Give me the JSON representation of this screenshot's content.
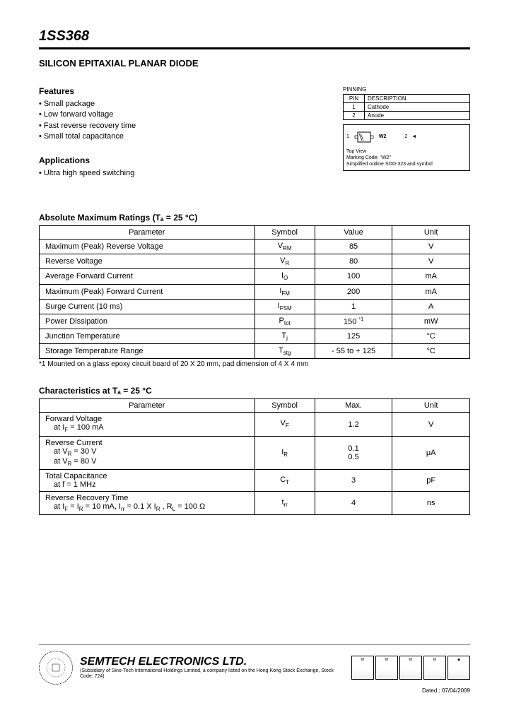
{
  "header": {
    "part_number": "1SS368",
    "subtitle": "SILICON EPITAXIAL PLANAR DIODE"
  },
  "features": {
    "heading": "Features",
    "items": [
      "Small package",
      "Low forward voltage",
      "Fast reverse recovery time",
      "Small total capacitance"
    ]
  },
  "applications": {
    "heading": "Applications",
    "items": [
      "Ultra high speed switching"
    ]
  },
  "pinning": {
    "title": "PINNING",
    "col1": "PIN",
    "col2": "DESCRIPTION",
    "rows": [
      {
        "pin": "1",
        "desc": "Cathode"
      },
      {
        "pin": "2",
        "desc": "Anode"
      }
    ],
    "package_label": "W2",
    "pin1": "1",
    "pin2": "2",
    "arrow": "◄",
    "top_view": "Top View",
    "marking": "Marking Code: \"W2\"",
    "outline": "Simplified outline SOD-323 and symbol"
  },
  "abs_max": {
    "title": "Absolute Maximum Ratings (Tₐ = 25 °C)",
    "headers": [
      "Parameter",
      "Symbol",
      "Value",
      "Unit"
    ],
    "rows": [
      {
        "param": "Maximum (Peak) Reverse Voltage",
        "sym": "V<sub>RM</sub>",
        "val": "85",
        "unit": "V"
      },
      {
        "param": "Reverse Voltage",
        "sym": "V<sub>R</sub>",
        "val": "80",
        "unit": "V"
      },
      {
        "param": "Average Forward Current",
        "sym": "I<sub>O</sub>",
        "val": "100",
        "unit": "mA"
      },
      {
        "param": "Maximum (Peak) Forward Current",
        "sym": "I<sub>FM</sub>",
        "val": "200",
        "unit": "mA"
      },
      {
        "param": "Surge Current (10 ms)",
        "sym": "I<sub>FSM</sub>",
        "val": "1",
        "unit": "A"
      },
      {
        "param": "Power Dissipation",
        "sym": "P<sub>tot</sub>",
        "val": "150 <sup>*1</sup>",
        "unit": "mW"
      },
      {
        "param": "Junction Temperature",
        "sym": "T<sub>j</sub>",
        "val": "125",
        "unit": "°C"
      },
      {
        "param": "Storage Temperature Range",
        "sym": "T<sub>stg</sub>",
        "val": "- 55 to + 125",
        "unit": "°C"
      }
    ],
    "footnote": "*1 Mounted on a glass epoxy circuit board of 20 X 20 mm, pad dimension of 4 X 4 mm"
  },
  "characteristics": {
    "title": "Characteristics at Tₐ = 25 °C",
    "headers": [
      "Parameter",
      "Symbol",
      "Max.",
      "Unit"
    ],
    "rows": [
      {
        "param": "Forward Voltage<br><span class=\"indent\">at I<sub>F</sub> = 100 mA</span>",
        "sym": "V<sub>F</sub>",
        "val": "1.2",
        "unit": "V"
      },
      {
        "param": "Reverse Current<br><span class=\"indent\">at V<sub>R</sub> = 30 V</span><span class=\"indent\">at V<sub>R</sub> = 80 V</span>",
        "sym": "I<sub>R</sub>",
        "val": "0.1<br>0.5",
        "unit": "μA"
      },
      {
        "param": "Total Capacitance<br><span class=\"indent\">at f = 1 MHz</span>",
        "sym": "C<sub>T</sub>",
        "val": "3",
        "unit": "pF"
      },
      {
        "param": "Reverse Recovery Time<br><span class=\"indent\">at I<sub>F</sub> = I<sub>R</sub> = 10 mA, I<sub>rr</sub> = 0.1 X I<sub>R</sub> , R<sub>L</sub> = 100 Ω</span>",
        "sym": "t<sub>rr</sub>",
        "val": "4",
        "unit": "ns"
      }
    ]
  },
  "footer": {
    "company": "SEMTECH ELECTRONICS LTD.",
    "sub": "(Subsidiary of Sino-Tech International Holdings Limited, a company listed on the Hong Kong Stock Exchange, Stock Code: 724)",
    "dated": "Dated : 07/04/2009",
    "badges": [
      "M",
      "M",
      "M",
      "M",
      "◉"
    ]
  }
}
